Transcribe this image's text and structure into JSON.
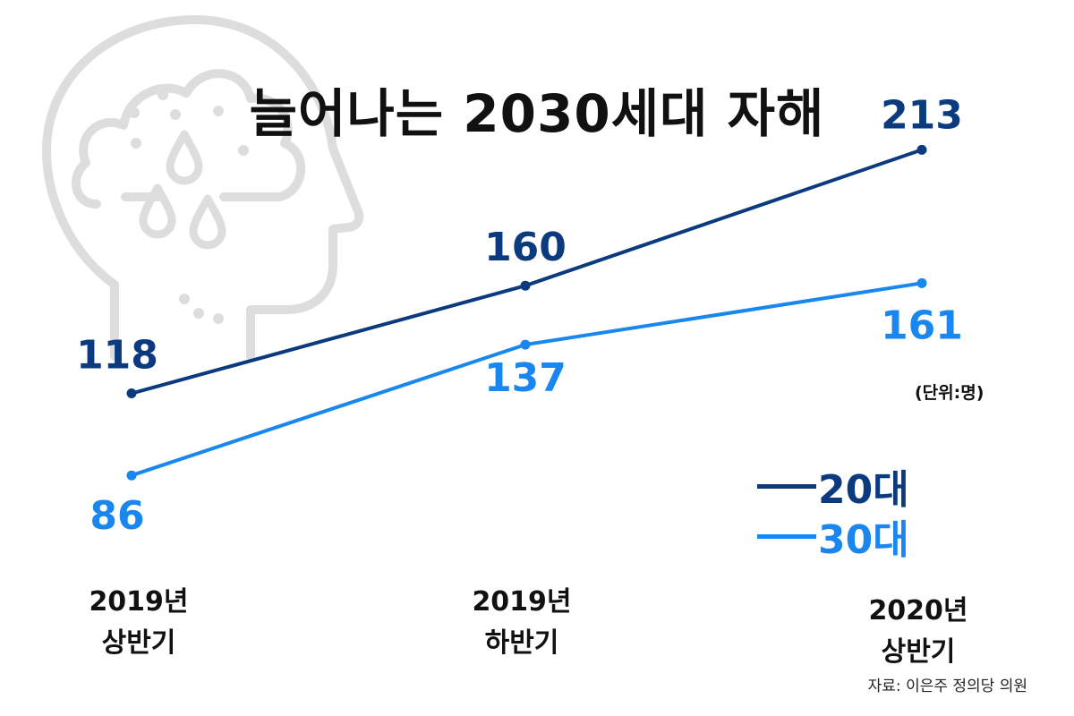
{
  "chart_data": {
    "type": "line",
    "title": "늘어나는 2030세대 자해",
    "unit_label": "(단위:명)",
    "source": "자료: 이은주 정의당 의원",
    "categories": [
      "2019년\n상반기",
      "2019년\n하반기",
      "2020년\n상반기"
    ],
    "series": [
      {
        "name": "20대",
        "values": [
          118,
          160,
          213
        ],
        "color": "#0b3a7e"
      },
      {
        "name": "30대",
        "values": [
          86,
          137,
          161
        ],
        "color": "#1a86ef"
      }
    ],
    "ylim": [
      55,
      240
    ],
    "grid": false,
    "legend": "bottom-right"
  },
  "decor": {
    "icon": "head-with-cloud-icon",
    "icon_color": "#dddddd"
  }
}
